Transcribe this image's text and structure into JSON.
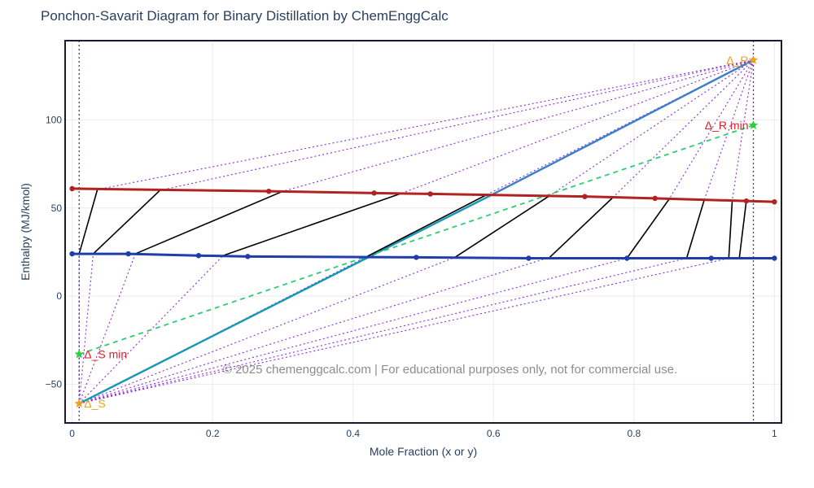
{
  "chart_data": {
    "type": "scatter",
    "title": "Ponchon-Savarit Diagram for Binary Distillation by ChemEnggCalc",
    "xlabel": "Mole Fraction (x or y)",
    "ylabel": "Enthalpy (MJ/kmol)",
    "xlim": [
      -0.01,
      1.01
    ],
    "ylim": [
      -72,
      145
    ],
    "x_ticks": [
      0,
      0.2,
      0.4,
      0.6,
      0.8,
      1
    ],
    "x_tick_labels": [
      "0",
      "0.2",
      "0.4",
      "0.6",
      "0.8",
      "1"
    ],
    "y_ticks": [
      -50,
      0,
      50,
      100
    ],
    "y_tick_labels": [
      "−50",
      "0",
      "50",
      "100"
    ],
    "grid": true,
    "legend": "none",
    "watermark": "© 2025 chemenggcalc.com | For educational purposes only, not for commercial use.",
    "series": [
      {
        "name": "",
        "role": "saturated-vapor",
        "color": "#b22222",
        "x": [
          0,
          0.28,
          0.43,
          0.51,
          0.73,
          0.83,
          0.96,
          1.0
        ],
        "y": [
          61,
          59.5,
          58.5,
          58,
          56.5,
          55.5,
          54,
          53.5
        ]
      },
      {
        "name": "",
        "role": "saturated-liquid",
        "color": "#1f3ea8",
        "x": [
          0,
          0.08,
          0.18,
          0.25,
          0.49,
          0.65,
          0.79,
          0.91,
          1.0
        ],
        "y": [
          24,
          24,
          23,
          22.5,
          22,
          21.5,
          21.5,
          21.5,
          21.5
        ]
      }
    ],
    "tie_lines": [
      [
        [
          0.01,
          24
        ],
        [
          0.036,
          60.5
        ]
      ],
      [
        [
          0.03,
          24
        ],
        [
          0.125,
          60
        ]
      ],
      [
        [
          0.09,
          24
        ],
        [
          0.3,
          59.5
        ]
      ],
      [
        [
          0.215,
          23
        ],
        [
          0.47,
          58.5
        ]
      ],
      [
        [
          0.42,
          22.5
        ],
        [
          0.59,
          57.5
        ]
      ],
      [
        [
          0.545,
          22
        ],
        [
          0.68,
          57
        ]
      ],
      [
        [
          0.68,
          22
        ],
        [
          0.77,
          56
        ]
      ],
      [
        [
          0.79,
          21.5
        ],
        [
          0.85,
          55
        ]
      ],
      [
        [
          0.875,
          21.5
        ],
        [
          0.9,
          54.5
        ]
      ],
      [
        [
          0.935,
          21.5
        ],
        [
          0.94,
          54.5
        ]
      ],
      [
        [
          0.95,
          21.5
        ],
        [
          0.96,
          54
        ]
      ]
    ],
    "operating_lines": [
      {
        "role": "rectifying",
        "color": "#3a7fc8",
        "from": [
          0.6,
          58
        ],
        "to": [
          0.97,
          134
        ]
      },
      {
        "role": "stripping",
        "color": "#1597b5",
        "from": [
          0.01,
          -61
        ],
        "to": [
          0.6,
          58
        ]
      },
      {
        "role": "minimum",
        "color": "#2ecc71",
        "dash": "6,5",
        "from": [
          0.01,
          -33
        ],
        "to": [
          0.97,
          97
        ]
      }
    ],
    "delta_points": [
      {
        "label": "Δ_R",
        "x": 0.97,
        "y": 134,
        "color": "#f0a020",
        "marker": "star"
      },
      {
        "label": "Δ_R min",
        "x": 0.97,
        "y": 97,
        "color": "#e0202a",
        "marker": "star-green"
      },
      {
        "label": "Δ_S min",
        "x": 0.01,
        "y": -33,
        "color": "#e0202a",
        "marker": "star-green"
      },
      {
        "label": "Δ_S",
        "x": 0.01,
        "y": -61,
        "color": "#f0a020",
        "marker": "star"
      }
    ],
    "delta_R_rays_to": [
      [
        0.036,
        60.5
      ],
      [
        0.125,
        60
      ],
      [
        0.3,
        59.5
      ],
      [
        0.47,
        58.5
      ],
      [
        0.59,
        57.5
      ],
      [
        0.68,
        57
      ],
      [
        0.77,
        56
      ],
      [
        0.85,
        55
      ],
      [
        0.9,
        54.5
      ],
      [
        0.94,
        54.5
      ]
    ],
    "delta_S_rays_to": [
      [
        0.01,
        24
      ],
      [
        0.03,
        24
      ],
      [
        0.09,
        24
      ],
      [
        0.215,
        23
      ],
      [
        0.42,
        22.5
      ],
      [
        0.545,
        22
      ],
      [
        0.68,
        22
      ],
      [
        0.79,
        21.5
      ],
      [
        0.875,
        21.5
      ],
      [
        0.935,
        21.5
      ]
    ],
    "composition_lines": [
      0.01,
      0.97
    ]
  }
}
